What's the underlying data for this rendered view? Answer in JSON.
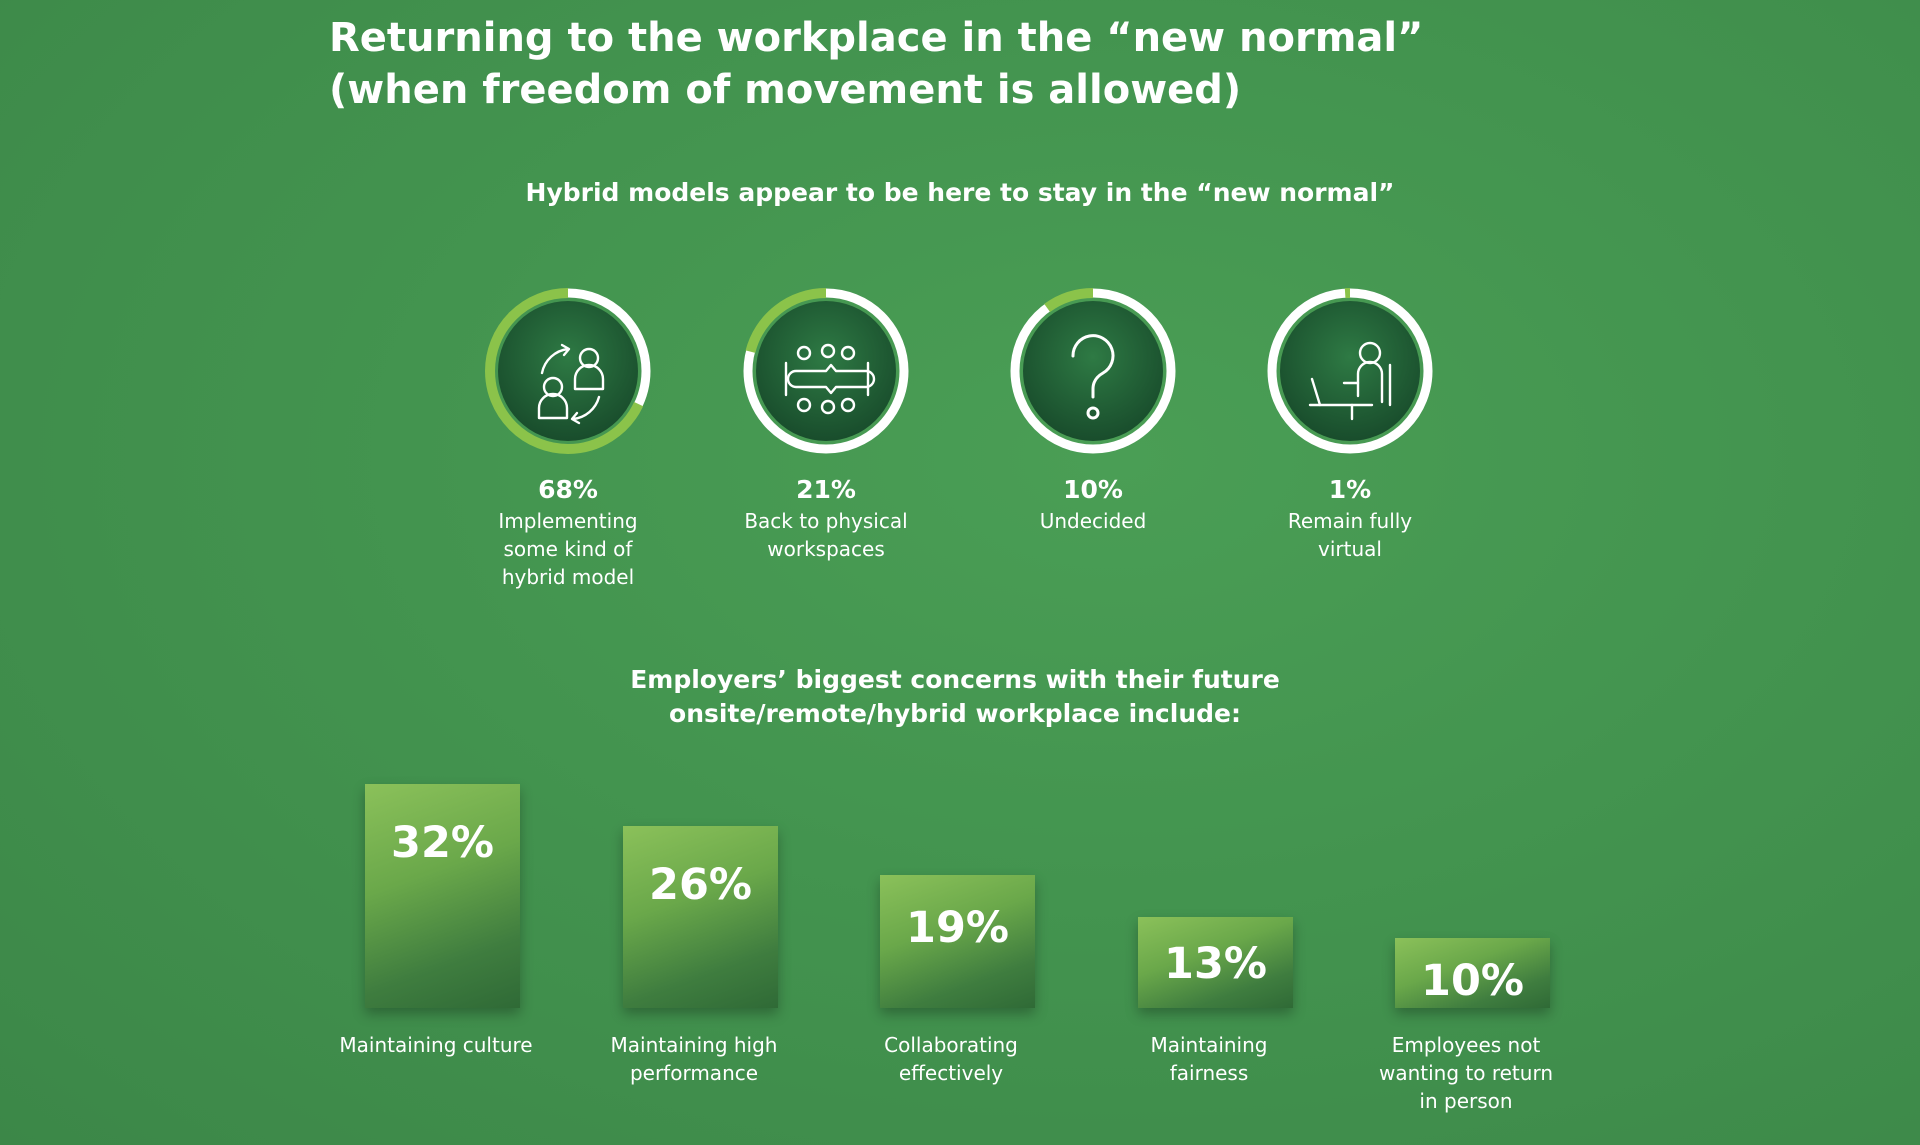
{
  "title": {
    "line1": "Returning to the workplace in the “new normal”",
    "line2": "(when freedom of movement is allowed)"
  },
  "hybrid_heading": "Hybrid models appear to be here to stay in the “new normal”",
  "concerns_heading": {
    "line1": "Employers’ biggest concerns with their future",
    "line2": "onsite/remote/hybrid workplace include:"
  },
  "colors": {
    "background": "#43944f",
    "accent_green": "#8bc34a",
    "ring_white": "#ffffff",
    "disc_dark": "#1f5a33"
  },
  "chart_data": [
    {
      "type": "pie",
      "title": "Hybrid models appear to be here to stay in the “new normal”",
      "slices": [
        {
          "value": 68,
          "display": "68%",
          "label": "Implementing some kind of hybrid model",
          "label_lines": [
            "Implementing",
            "some kind of",
            "hybrid model"
          ],
          "icon": "people-exchange-icon"
        },
        {
          "value": 21,
          "display": "21%",
          "label": "Back to physical workspaces",
          "label_lines": [
            "Back to physical",
            "workspaces"
          ],
          "icon": "meeting-table-icon"
        },
        {
          "value": 10,
          "display": "10%",
          "label": "Undecided",
          "label_lines": [
            "Undecided"
          ],
          "icon": "question-mark-icon"
        },
        {
          "value": 1,
          "display": "1%",
          "label": "Remain fully virtual",
          "label_lines": [
            "Remain fully",
            "virtual"
          ],
          "icon": "person-laptop-icon"
        }
      ]
    },
    {
      "type": "bar",
      "title": "Employers’ biggest concerns with their future onsite/remote/hybrid workplace include:",
      "categories": [
        "Maintaining culture",
        "Maintaining high performance",
        "Collaborating effectively",
        "Maintaining fairness",
        "Employees not wanting to return in person"
      ],
      "category_lines": [
        [
          "Maintaining culture"
        ],
        [
          "Maintaining high",
          "performance"
        ],
        [
          "Collaborating",
          "effectively"
        ],
        [
          "Maintaining",
          "fairness"
        ],
        [
          "Employees not",
          "wanting to return",
          "in person"
        ]
      ],
      "values": [
        32,
        26,
        19,
        13,
        10
      ],
      "value_labels": [
        "32%",
        "26%",
        "19%",
        "13%",
        "10%"
      ]
    }
  ]
}
